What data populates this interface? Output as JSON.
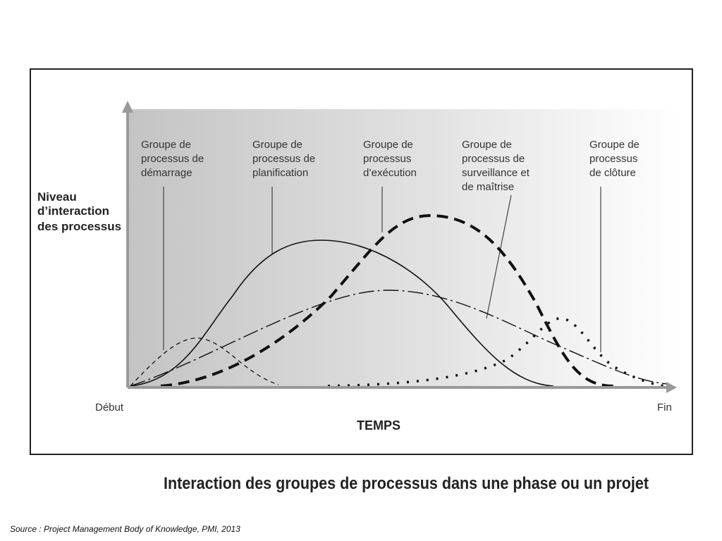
{
  "y_axis": {
    "label_lines": [
      "Niveau",
      "d’interaction",
      "des processus"
    ]
  },
  "x_axis": {
    "start": "Début",
    "end": "Fin",
    "label": "TEMPS"
  },
  "groups": [
    {
      "label_lines": [
        "Groupe de",
        "processus de",
        "démarrage"
      ]
    },
    {
      "label_lines": [
        "Groupe de",
        "processus de",
        "planification"
      ]
    },
    {
      "label_lines": [
        "Groupe de",
        "processus",
        "d’exécution"
      ]
    },
    {
      "label_lines": [
        "Groupe de",
        "processus de",
        "surveillance et",
        "de maîtrise"
      ]
    },
    {
      "label_lines": [
        "Groupe de",
        "processus",
        "de clôture"
      ]
    }
  ],
  "title": "Interaction des groupes de processus dans une phase ou un projet",
  "source": "Source : Project Management Body of Knowledge, PMI, 2013"
}
